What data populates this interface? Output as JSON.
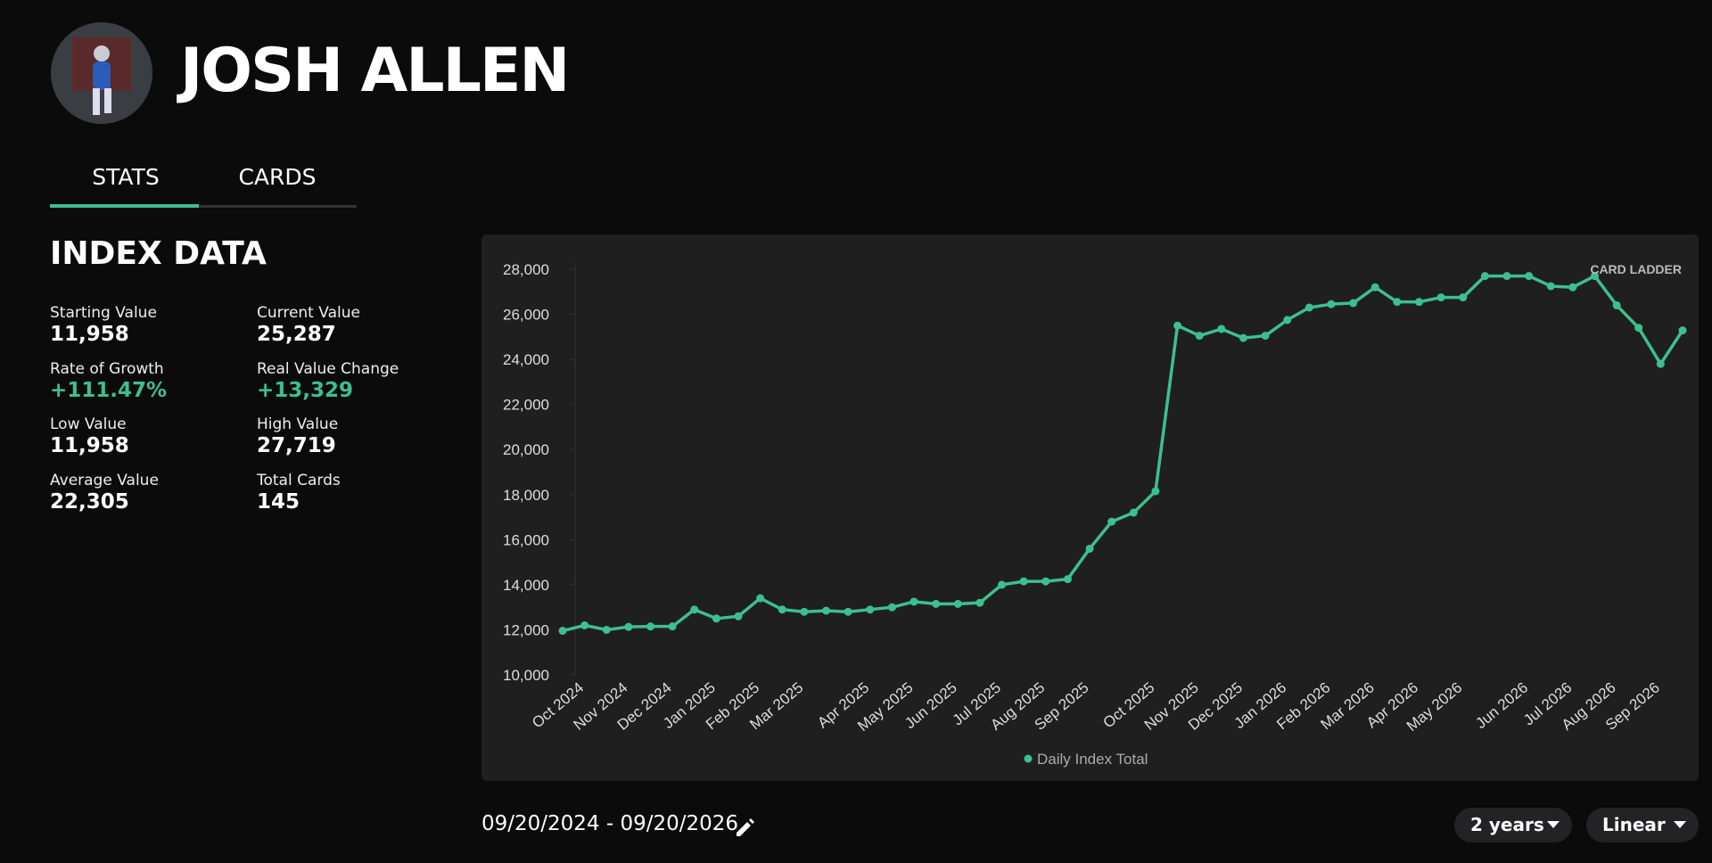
{
  "header": {
    "title": "JOSH ALLEN"
  },
  "tabs": [
    "STATS",
    "CARDS"
  ],
  "index_data": {
    "title": "INDEX DATA",
    "stats": [
      {
        "label": "Starting Value",
        "value": "11,958"
      },
      {
        "label": "Current Value",
        "value": "25,287"
      },
      {
        "label": "Rate of Growth",
        "value": "+111.47%",
        "color": "#3dbf8f"
      },
      {
        "label": "Real Value Change",
        "value": "+13,329",
        "color": "#3dbf8f"
      },
      {
        "label": "Low Value",
        "value": "11,958"
      },
      {
        "label": "High Value",
        "value": "27,719"
      },
      {
        "label": "Average Value",
        "value": "22,305"
      },
      {
        "label": "Total Cards",
        "value": "145"
      }
    ]
  },
  "chart_data": {
    "type": "line",
    "watermark": "CARD LADDER",
    "categories": [
      null,
      "Oct 2024",
      null,
      "Nov 2024",
      null,
      "Dec 2024",
      null,
      "Jan 2025",
      null,
      "Feb 2025",
      null,
      "Mar 2025",
      null,
      null,
      "Apr 2025",
      null,
      "May 2025",
      null,
      "Jun 2025",
      null,
      "Jul 2025",
      null,
      "Aug 2025",
      null,
      "Sep 2025",
      null,
      null,
      "Oct 2025",
      null,
      "Nov 2025",
      null,
      "Dec 2025",
      null,
      "Jan 2026",
      null,
      "Feb 2026",
      null,
      "Mar 2026",
      null,
      "Apr 2026",
      null,
      "May 2026",
      null,
      null,
      "Jun 2026",
      null,
      "Jul 2026",
      null,
      "Aug 2026",
      null,
      "Sep 2026",
      null
    ],
    "series": [
      {
        "name": "Daily Index Total",
        "color": "#3dbf8f",
        "values": [
          11958,
          12200,
          12000,
          12130,
          12150,
          12150,
          12900,
          12500,
          12600,
          13400,
          12900,
          12800,
          12850,
          12800,
          12900,
          13000,
          13250,
          13150,
          13150,
          13200,
          14000,
          14150,
          14150,
          14250,
          15600,
          16800,
          17200,
          18150,
          25500,
          25050,
          25350,
          24950,
          25050,
          25750,
          26300,
          26450,
          26500,
          27200,
          26550,
          26550,
          26750,
          26750,
          27700,
          27700,
          27700,
          27250,
          27200,
          27700,
          26400,
          25400,
          23800,
          25287
        ]
      }
    ],
    "ylim": [
      10000,
      28000
    ],
    "yticks": [
      {
        "value": 10000,
        "label": "10,000"
      },
      {
        "value": 12000,
        "label": "12,000"
      },
      {
        "value": 14000,
        "label": "14,000"
      },
      {
        "value": 16000,
        "label": "16,000"
      },
      {
        "value": 18000,
        "label": "18,000"
      },
      {
        "value": 20000,
        "label": "20,000"
      },
      {
        "value": 22000,
        "label": "22,000"
      },
      {
        "value": 24000,
        "label": "24,000"
      },
      {
        "value": 26000,
        "label": "26,000"
      },
      {
        "value": 28000,
        "label": "28,000"
      }
    ],
    "grid": false
  },
  "date_range": "09/20/2024 - 09/20/2026",
  "controls": [
    "2 years",
    "Linear"
  ]
}
